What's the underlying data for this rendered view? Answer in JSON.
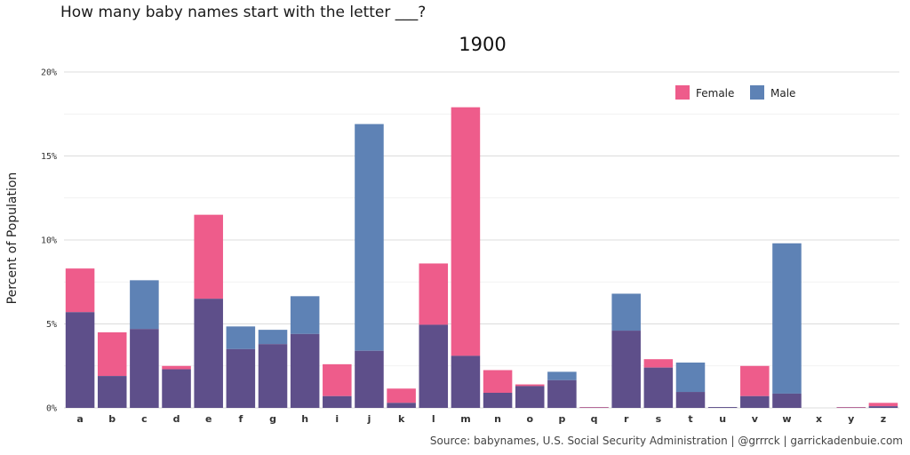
{
  "chart_data": {
    "type": "bar",
    "title": "How many baby names start with the letter ___?",
    "subtitle": "1900",
    "xlabel": "",
    "ylabel": "Percent of Population",
    "ylim": [
      0,
      20
    ],
    "yticks": [
      "0%",
      "5%",
      "10%",
      "15%",
      "20%"
    ],
    "yticks_values": [
      0,
      5,
      10,
      15,
      20
    ],
    "categories": [
      "a",
      "b",
      "c",
      "d",
      "e",
      "f",
      "g",
      "h",
      "i",
      "j",
      "k",
      "l",
      "m",
      "n",
      "o",
      "p",
      "q",
      "r",
      "s",
      "t",
      "u",
      "v",
      "w",
      "x",
      "y",
      "z"
    ],
    "series": [
      {
        "name": "Female",
        "color": "#ee5c8b",
        "values": [
          8.3,
          4.5,
          4.7,
          2.5,
          11.5,
          3.5,
          3.8,
          4.4,
          2.6,
          3.4,
          1.15,
          8.6,
          17.9,
          2.25,
          1.4,
          1.65,
          0.05,
          4.6,
          2.9,
          0.95,
          0.05,
          2.5,
          0.85,
          0.0,
          0.05,
          0.3
        ]
      },
      {
        "name": "Male",
        "color": "#5e82b5",
        "values": [
          5.7,
          1.9,
          7.6,
          2.3,
          6.5,
          4.85,
          4.65,
          6.65,
          0.7,
          16.9,
          0.3,
          4.95,
          3.1,
          0.9,
          1.3,
          2.15,
          0.02,
          6.8,
          2.4,
          2.7,
          0.05,
          0.7,
          9.8,
          0.0,
          0.02,
          0.1
        ]
      }
    ],
    "overlap_color": "#5e4f8a",
    "legend": "top-right",
    "grid": true
  },
  "caption": "Source: babynames, U.S. Social Security Administration | @grrrck | garrickadenbuie.com"
}
